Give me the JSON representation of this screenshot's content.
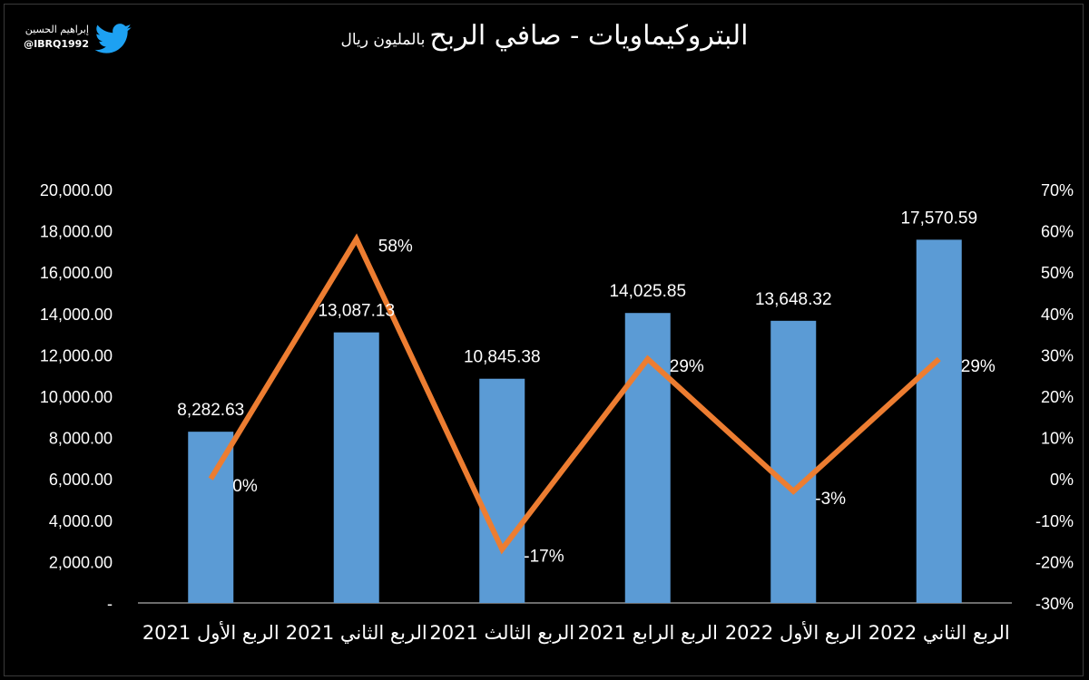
{
  "header": {
    "title": "البتروكيماويات - صافي الربح",
    "subtitle": "بالمليون ريال"
  },
  "brand": {
    "name": "إبراهيم الحسين",
    "handle": "@IBRQ1992",
    "icon": "twitter-bird-icon",
    "icon_color": "#1DA1F2"
  },
  "chart_data": {
    "type": "bar",
    "title": "البتروكيماويات - صافي الربح",
    "subtitle": "بالمليون ريال",
    "categories": [
      "الربع الأول 2021",
      "الربع الثاني 2021",
      "الربع الثالث 2021",
      "الربع الرابع 2021",
      "الربع الأول 2022",
      "الربع الثاني 2022"
    ],
    "series": [
      {
        "type": "bar",
        "axis": "left",
        "color": "#5B9BD5",
        "values": [
          8282.63,
          13087.13,
          10845.38,
          14025.85,
          13648.32,
          17570.59
        ],
        "labels": [
          "8,282.63",
          "13,087.13",
          "10,845.38",
          "14,025.85",
          "13,648.32",
          "17,570.59"
        ]
      },
      {
        "type": "line",
        "axis": "right",
        "color": "#ED7D31",
        "values": [
          0,
          58,
          -17,
          29,
          -3,
          29
        ],
        "labels": [
          "0%",
          "58%",
          "-17%",
          "29%",
          "-3%",
          "29%"
        ]
      }
    ],
    "y_left": {
      "range": [
        0,
        20000
      ],
      "ticks": [
        0,
        2000,
        4000,
        6000,
        8000,
        10000,
        12000,
        14000,
        16000,
        18000,
        20000
      ],
      "tick_labels": [
        "-",
        "2,000.00",
        "4,000.00",
        "6,000.00",
        "8,000.00",
        "10,000.00",
        "12,000.00",
        "14,000.00",
        "16,000.00",
        "18,000.00",
        "20,000.00"
      ]
    },
    "y_right": {
      "range": [
        -30,
        70
      ],
      "ticks": [
        -30,
        -20,
        -10,
        0,
        10,
        20,
        30,
        40,
        50,
        60,
        70
      ],
      "tick_labels": [
        "-30%",
        "-20%",
        "-10%",
        "0%",
        "10%",
        "20%",
        "30%",
        "40%",
        "50%",
        "60%",
        "70%"
      ]
    },
    "grid": false,
    "legend": "none",
    "background": "#000000",
    "text_color": "#FFFFFF"
  }
}
